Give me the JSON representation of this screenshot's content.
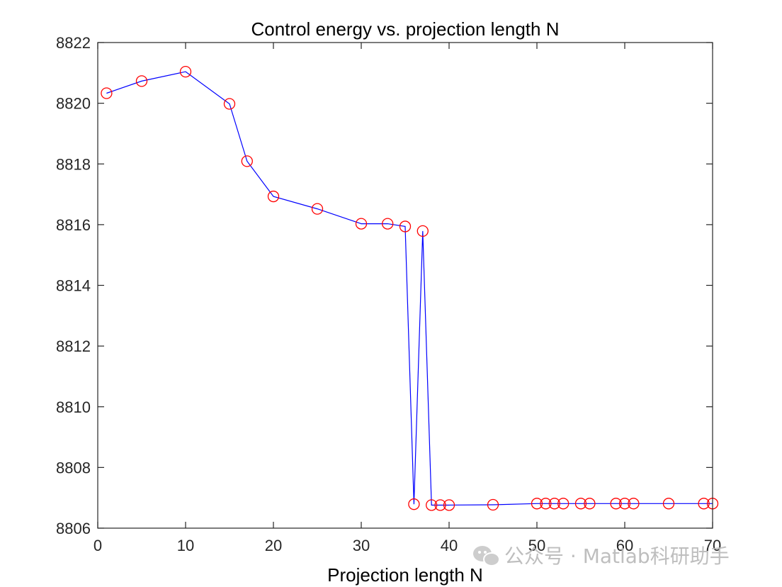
{
  "chart_data": {
    "type": "line",
    "title": "Control energy vs. projection length N",
    "xlabel": "Projection length N",
    "ylabel": "",
    "xlim": [
      0,
      70
    ],
    "ylim": [
      8806,
      8822
    ],
    "xticks": [
      0,
      10,
      20,
      30,
      40,
      50,
      60,
      70
    ],
    "yticks": [
      8806,
      8808,
      8810,
      8812,
      8814,
      8816,
      8818,
      8820,
      8822
    ],
    "grid": false,
    "series": [
      {
        "name": "Control energy",
        "line_color": "#0000ff",
        "marker": "circle",
        "marker_color": "#ff0000",
        "x": [
          1,
          5,
          10,
          15,
          17,
          20,
          25,
          30,
          33,
          35,
          36,
          37,
          38,
          39,
          40,
          45,
          50,
          51,
          52,
          53,
          55,
          56,
          59,
          60,
          61,
          65,
          69,
          70
        ],
        "y": [
          8820.33,
          8820.73,
          8821.04,
          8819.98,
          8818.09,
          8816.93,
          8816.52,
          8816.03,
          8816.03,
          8815.94,
          8806.79,
          8815.79,
          8806.76,
          8806.76,
          8806.76,
          8806.77,
          8806.81,
          8806.81,
          8806.81,
          8806.81,
          8806.81,
          8806.81,
          8806.81,
          8806.81,
          8806.81,
          8806.81,
          8806.81,
          8806.81
        ]
      }
    ]
  },
  "watermark": {
    "icon": "wechat-icon",
    "text": "公众号 · Matlab科研助手"
  }
}
